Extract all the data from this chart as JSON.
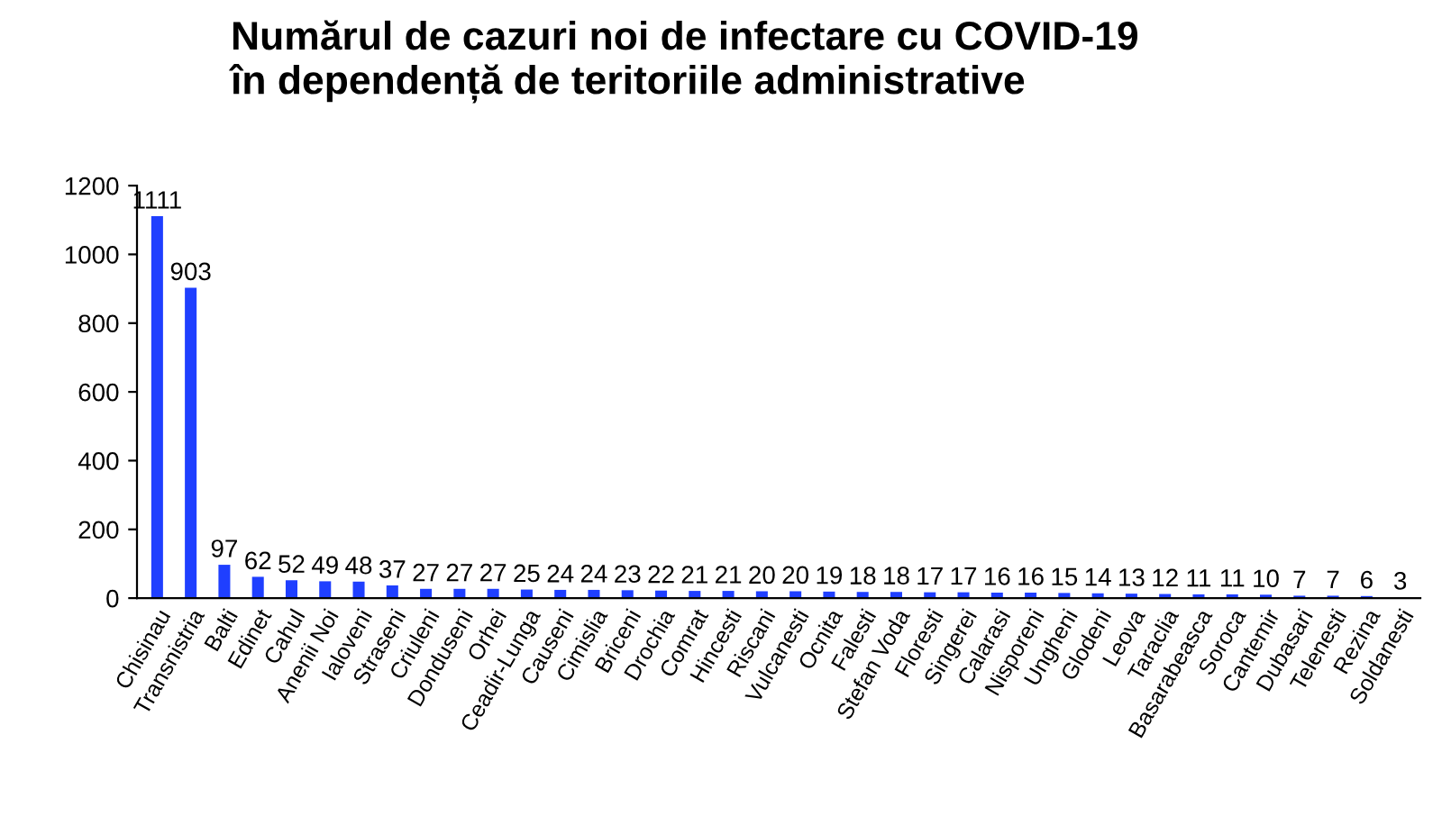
{
  "chart_data": {
    "type": "bar",
    "title": "Numărul de cazuri noi de infectare cu COVID-19\nîn dependență de teritoriile administrative",
    "categories": [
      "Chisinau",
      "Transnistria",
      "Balti",
      "Edinet",
      "Cahul",
      "Anenii Noi",
      "Ialoveni",
      "Straseni",
      "Criuleni",
      "Donduseni",
      "Orhei",
      "Ceadir-Lunga",
      "Causeni",
      "Cimislia",
      "Briceni",
      "Drochia",
      "Comrat",
      "Hincesti",
      "Riscani",
      "Vulcanesti",
      "Ocnita",
      "Falesti",
      "Stefan Voda",
      "Floresti",
      "Singerei",
      "Calarasi",
      "Nisporeni",
      "Ungheni",
      "Glodeni",
      "Leova",
      "Taraclia",
      "Basarabeasca",
      "Soroca",
      "Cantemir",
      "Dubasari",
      "Telenesti",
      "Rezina",
      "Soldanesti"
    ],
    "values": [
      1111,
      903,
      97,
      62,
      52,
      49,
      48,
      37,
      27,
      27,
      27,
      25,
      24,
      24,
      23,
      22,
      21,
      21,
      20,
      20,
      19,
      18,
      18,
      17,
      17,
      16,
      16,
      15,
      14,
      13,
      12,
      11,
      11,
      10,
      7,
      7,
      6,
      3
    ],
    "color": "#1f3fff",
    "ylim": [
      0,
      1200
    ],
    "yticks": [
      0,
      200,
      400,
      600,
      800,
      1000,
      1200
    ],
    "grid": false,
    "data_labels": true
  }
}
